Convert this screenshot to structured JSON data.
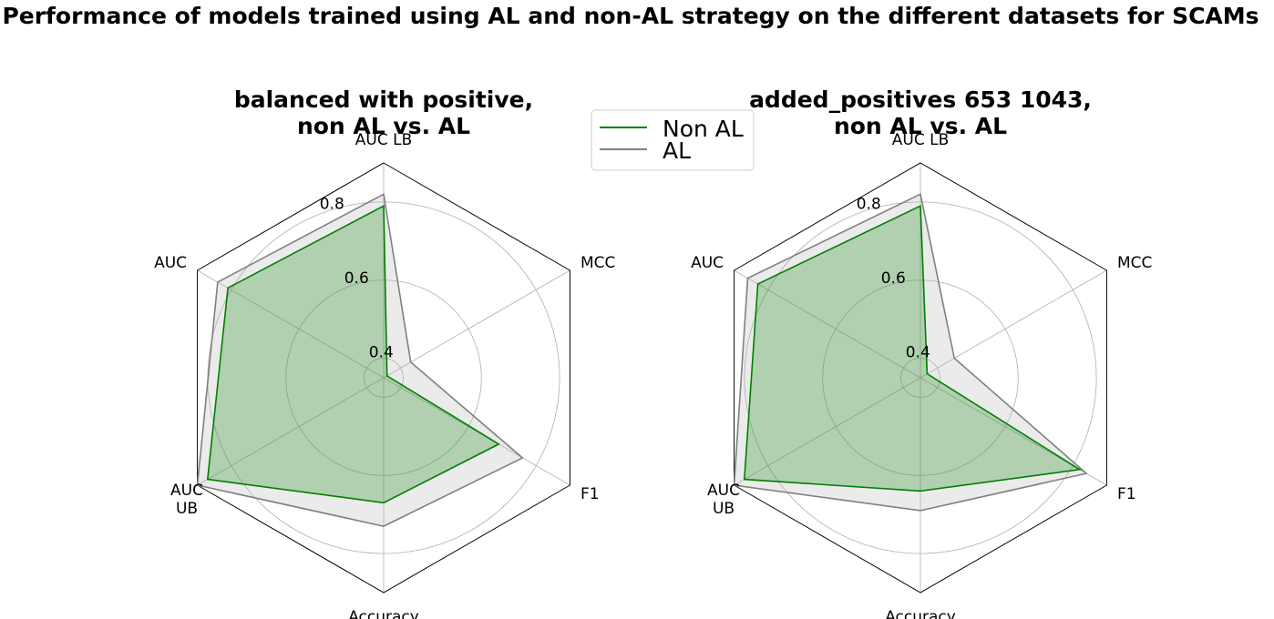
{
  "figure": {
    "title": "Performance of models trained using AL and non-AL strategy on the different datasets for SCAMs"
  },
  "legend": {
    "placement": "upper-center",
    "entries": [
      {
        "name": "Non AL",
        "color": "#008000"
      },
      {
        "name": "AL",
        "color": "#808080"
      }
    ]
  },
  "chart_data": [
    {
      "type": "radar",
      "title_lines": [
        "balanced with positive,",
        "non AL vs. AL"
      ],
      "axes": [
        "AUC LB",
        "MCC",
        "F1",
        "Accuracy",
        "AUC UB",
        "AUC"
      ],
      "axis_label_lines": [
        [
          "AUC LB"
        ],
        [
          "MCC"
        ],
        [
          "F1"
        ],
        [
          "Accuracy"
        ],
        [
          "AUC",
          "UB"
        ],
        [
          "AUC"
        ]
      ],
      "rmin": 0.35,
      "rmax": 0.9,
      "rticks": [
        0.4,
        0.6,
        0.8
      ],
      "rtick_labels": [
        "0.4",
        "0.6",
        "0.8"
      ],
      "grid": true,
      "series": [
        {
          "name": "Non AL",
          "color": "#008000",
          "fill": "#008000",
          "values": [
            0.79,
            0.36,
            0.69,
            0.67,
            0.87,
            0.81
          ]
        },
        {
          "name": "AL",
          "color": "#808080",
          "fill": "#b0b0b0",
          "values": [
            0.82,
            0.43,
            0.76,
            0.73,
            0.9,
            0.84
          ]
        }
      ]
    },
    {
      "type": "radar",
      "title_lines": [
        "added_positives 653 1043,",
        "non AL vs. AL"
      ],
      "axes": [
        "AUC LB",
        "MCC",
        "F1",
        "Accuracy",
        "AUC UB",
        "AUC"
      ],
      "axis_label_lines": [
        [
          "AUC LB"
        ],
        [
          "MCC"
        ],
        [
          "F1"
        ],
        [
          "Accuracy"
        ],
        [
          "AUC",
          "UB"
        ],
        [
          "AUC"
        ]
      ],
      "rmin": 0.35,
      "rmax": 0.9,
      "rticks": [
        0.4,
        0.6,
        0.8
      ],
      "rtick_labels": [
        "0.4",
        "0.6",
        "0.8"
      ],
      "grid": true,
      "series": [
        {
          "name": "Non AL",
          "color": "#008000",
          "fill": "#008000",
          "values": [
            0.79,
            0.37,
            0.82,
            0.64,
            0.87,
            0.83
          ]
        },
        {
          "name": "AL",
          "color": "#808080",
          "fill": "#b0b0b0",
          "values": [
            0.82,
            0.45,
            0.84,
            0.69,
            0.9,
            0.86
          ]
        }
      ]
    }
  ]
}
